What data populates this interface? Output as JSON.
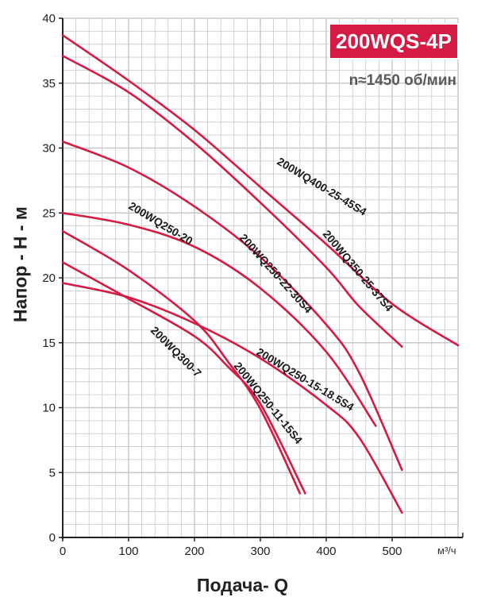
{
  "badge": "200WQS-4P",
  "speed": "n≈1450 об/мин",
  "chart_data": {
    "type": "line",
    "xlabel": "Подача- Q",
    "ylabel": "Напор - H - м",
    "x_unit": "м³/ч",
    "xlim": [
      0,
      600
    ],
    "ylim": [
      0,
      40
    ],
    "x_ticks": [
      0,
      100,
      200,
      300,
      400,
      500
    ],
    "y_ticks": [
      0,
      5,
      10,
      15,
      20,
      25,
      30,
      35,
      40
    ],
    "grid": true,
    "colors": {
      "curve": "#d51a44",
      "grid": "#c8c8c8",
      "axis": "#222222"
    },
    "series": [
      {
        "name": "200WQ400-25-45S4",
        "points": [
          [
            0,
            38.7
          ],
          [
            100,
            35.2
          ],
          [
            200,
            31.4
          ],
          [
            300,
            27.0
          ],
          [
            400,
            22.6
          ],
          [
            500,
            18.0
          ],
          [
            600,
            14.8
          ]
        ]
      },
      {
        "name": "200WQ350-25-37S4",
        "points": [
          [
            0,
            37.1
          ],
          [
            100,
            34.3
          ],
          [
            200,
            30.4
          ],
          [
            300,
            25.8
          ],
          [
            400,
            20.8
          ],
          [
            450,
            17.8
          ],
          [
            515,
            14.7
          ]
        ]
      },
      {
        "name": "200WQ250-22-30S4",
        "points": [
          [
            0,
            30.5
          ],
          [
            100,
            28.5
          ],
          [
            200,
            25.5
          ],
          [
            300,
            21.6
          ],
          [
            400,
            16.4
          ],
          [
            450,
            12.7
          ],
          [
            515,
            5.2
          ]
        ]
      },
      {
        "name": "200WQ250-20",
        "points": [
          [
            0,
            25.0
          ],
          [
            100,
            24.1
          ],
          [
            200,
            22.4
          ],
          [
            300,
            19.2
          ],
          [
            400,
            14.3
          ],
          [
            475,
            8.6
          ]
        ]
      },
      {
        "name": "200WQ250-15-18.5S4",
        "points": [
          [
            0,
            19.6
          ],
          [
            100,
            18.5
          ],
          [
            200,
            16.5
          ],
          [
            300,
            13.8
          ],
          [
            400,
            10.2
          ],
          [
            450,
            7.7
          ],
          [
            515,
            1.9
          ]
        ]
      },
      {
        "name": "200WQ300-7",
        "points": [
          [
            0,
            23.6
          ],
          [
            100,
            20.6
          ],
          [
            200,
            16.7
          ],
          [
            250,
            13.6
          ],
          [
            300,
            9.9
          ],
          [
            360,
            3.4
          ]
        ]
      },
      {
        "name": "200WQ250-11-15S4",
        "points": [
          [
            0,
            21.2
          ],
          [
            100,
            18.4
          ],
          [
            200,
            15.5
          ],
          [
            250,
            13.2
          ],
          [
            300,
            10.3
          ],
          [
            368,
            3.4
          ]
        ]
      }
    ]
  }
}
